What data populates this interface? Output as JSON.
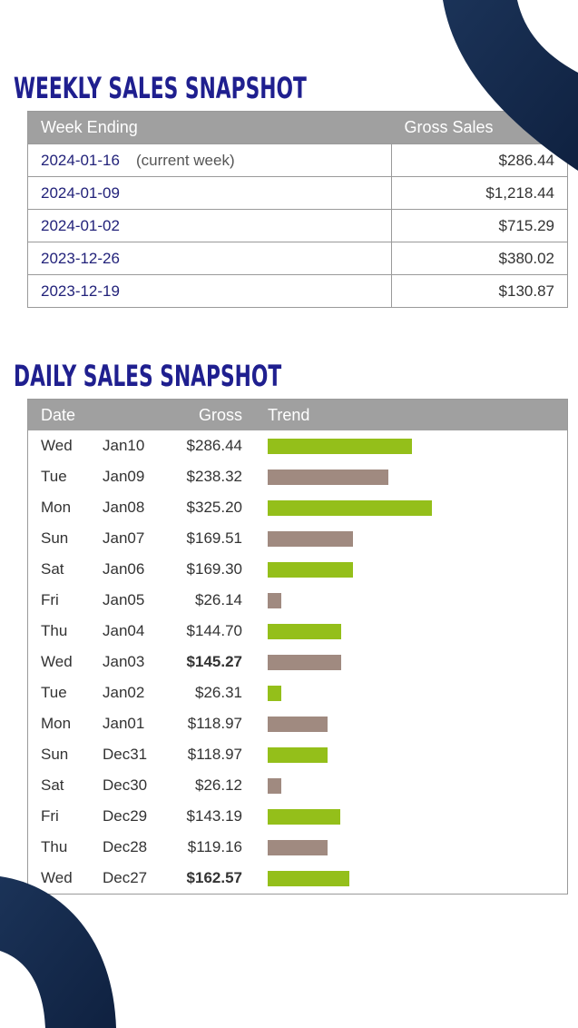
{
  "weekly": {
    "title": "WEEKLY SALES SNAPSHOT",
    "headers": {
      "week": "Week Ending",
      "gross": "Gross Sales"
    },
    "rows": [
      {
        "date": "2024-01-16",
        "note": "(current week)",
        "amount": "$286.44"
      },
      {
        "date": "2024-01-09",
        "note": "",
        "amount": "$1,218.44"
      },
      {
        "date": "2024-01-02",
        "note": "",
        "amount": "$715.29"
      },
      {
        "date": "2023-12-26",
        "note": "",
        "amount": "$380.02"
      },
      {
        "date": "2023-12-19",
        "note": "",
        "amount": "$130.87"
      }
    ]
  },
  "daily": {
    "title": "DAILY SALES SNAPSHOT",
    "headers": {
      "date": "Date",
      "gross": "Gross",
      "trend": "Trend"
    },
    "rows": [
      {
        "day": "Wed",
        "date": "Jan10",
        "gross": "$286.44",
        "value": 286.44,
        "trend": "up",
        "bold": false
      },
      {
        "day": "Tue",
        "date": "Jan09",
        "gross": "$238.32",
        "value": 238.32,
        "trend": "down",
        "bold": false
      },
      {
        "day": "Mon",
        "date": "Jan08",
        "gross": "$325.20",
        "value": 325.2,
        "trend": "up",
        "bold": false
      },
      {
        "day": "Sun",
        "date": "Jan07",
        "gross": "$169.51",
        "value": 169.51,
        "trend": "down",
        "bold": false
      },
      {
        "day": "Sat",
        "date": "Jan06",
        "gross": "$169.30",
        "value": 169.3,
        "trend": "up",
        "bold": false
      },
      {
        "day": "Fri",
        "date": "Jan05",
        "gross": "$26.14",
        "value": 26.14,
        "trend": "down",
        "bold": false
      },
      {
        "day": "Thu",
        "date": "Jan04",
        "gross": "$144.70",
        "value": 144.7,
        "trend": "up",
        "bold": false
      },
      {
        "day": "Wed",
        "date": "Jan03",
        "gross": "$145.27",
        "value": 145.27,
        "trend": "down",
        "bold": true
      },
      {
        "day": "Tue",
        "date": "Jan02",
        "gross": "$26.31",
        "value": 26.31,
        "trend": "up",
        "bold": false
      },
      {
        "day": "Mon",
        "date": "Jan01",
        "gross": "$118.97",
        "value": 118.97,
        "trend": "down",
        "bold": false
      },
      {
        "day": "Sun",
        "date": "Dec31",
        "gross": "$118.97",
        "value": 118.97,
        "trend": "up",
        "bold": false
      },
      {
        "day": "Sat",
        "date": "Dec30",
        "gross": "$26.12",
        "value": 26.12,
        "trend": "down",
        "bold": false
      },
      {
        "day": "Fri",
        "date": "Dec29",
        "gross": "$143.19",
        "value": 143.19,
        "trend": "up",
        "bold": false
      },
      {
        "day": "Thu",
        "date": "Dec28",
        "gross": "$119.16",
        "value": 119.16,
        "trend": "down",
        "bold": false
      },
      {
        "day": "Wed",
        "date": "Dec27",
        "gross": "$162.57",
        "value": 162.57,
        "trend": "up",
        "bold": true
      }
    ]
  },
  "colors": {
    "title": "#1f1f8f",
    "header_bg": "#a0a0a0",
    "trend_up": "#94bf1a",
    "trend_down": "#a08a80",
    "decoration": "#13294b"
  },
  "decoration": [
    "corner-arc-top-right",
    "corner-arc-bottom-left"
  ]
}
